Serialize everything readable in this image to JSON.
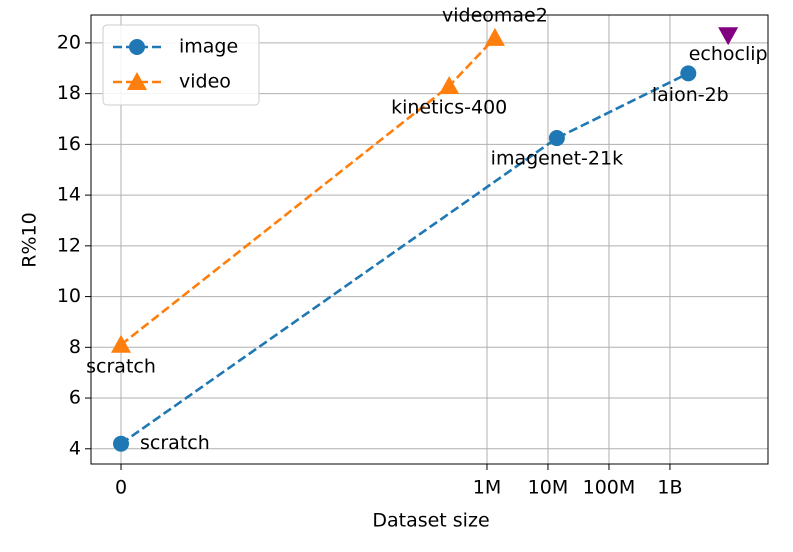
{
  "chart_data": {
    "type": "line",
    "xlabel": "Dataset size",
    "ylabel": "R%10",
    "xscale": "log1p",
    "xlim": [
      -0.678,
      40500000000
    ],
    "ylim": [
      3.4,
      21.1
    ],
    "xticks": [
      0,
      {
        "value": 1000000,
        "label": "1M"
      },
      {
        "value": 10000000,
        "label": "10M"
      },
      {
        "value": 100000000,
        "label": "100M"
      },
      {
        "value": 1000000000,
        "label": "1B"
      }
    ],
    "yticks": [
      4,
      6,
      8,
      10,
      12,
      14,
      16,
      18,
      20
    ],
    "grid": true,
    "legend": "upper left",
    "series": [
      {
        "name": "image",
        "color": "#1f77b4",
        "marker": "circle",
        "x": [
          0,
          14000000,
          2000000000
        ],
        "values": [
          4.2,
          16.25,
          18.8
        ],
        "point_labels": [
          "scratch",
          "imagenet-21k",
          "laion-2b"
        ]
      },
      {
        "name": "video",
        "color": "#ff7f0e",
        "marker": "triangle-up",
        "x": [
          0,
          240000,
          1350000
        ],
        "values": [
          8.1,
          18.3,
          20.2
        ],
        "point_labels": [
          "scratch",
          "kinetics-400",
          "videomae2"
        ]
      }
    ],
    "points": [
      {
        "name": "echoclip",
        "color": "#800080",
        "marker": "triangle-down",
        "x": 9000000000,
        "y": 20.3
      }
    ]
  }
}
